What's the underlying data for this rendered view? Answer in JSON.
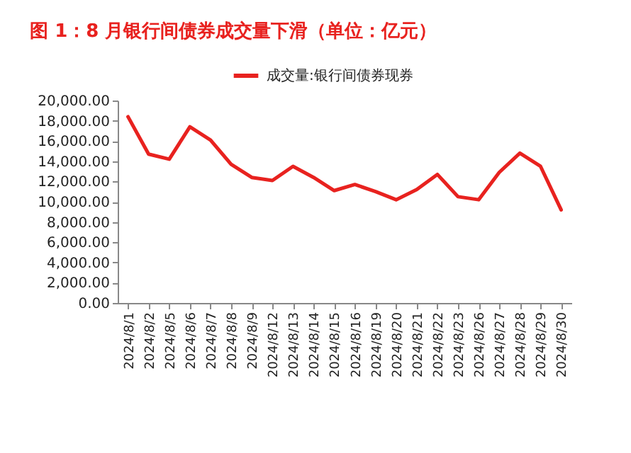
{
  "chart_data": {
    "type": "line",
    "title": "图 1：8 月银行间债券成交量下滑（单位：亿元）",
    "categories": [
      "2024/8/1",
      "2024/8/2",
      "2024/8/5",
      "2024/8/6",
      "2024/8/7",
      "2024/8/8",
      "2024/8/9",
      "2024/8/12",
      "2024/8/13",
      "2024/8/14",
      "2024/8/15",
      "2024/8/16",
      "2024/8/19",
      "2024/8/20",
      "2024/8/21",
      "2024/8/22",
      "2024/8/23",
      "2024/8/26",
      "2024/8/27",
      "2024/8/28",
      "2024/8/29",
      "2024/8/30"
    ],
    "series": [
      {
        "name": "成交量:银行间债券现券",
        "color": "#e8221f",
        "values": [
          18400,
          14700,
          14200,
          17400,
          16100,
          13700,
          12400,
          12100,
          13500,
          12400,
          11100,
          11700,
          11000,
          10200,
          11200,
          12700,
          10500,
          10200,
          12900,
          14800,
          13500,
          9200
        ]
      }
    ],
    "ylim": [
      0,
      20000
    ],
    "yticks": [
      {
        "value": 0,
        "label": "0.00"
      },
      {
        "value": 2000,
        "label": "2,000.00"
      },
      {
        "value": 4000,
        "label": "4,000.00"
      },
      {
        "value": 6000,
        "label": "6,000.00"
      },
      {
        "value": 8000,
        "label": "8,000.00"
      },
      {
        "value": 10000,
        "label": "10,000.00"
      },
      {
        "value": 12000,
        "label": "12,000.00"
      },
      {
        "value": 14000,
        "label": "14,000.00"
      },
      {
        "value": 16000,
        "label": "16,000.00"
      },
      {
        "value": 18000,
        "label": "18,000.00"
      },
      {
        "value": 20000,
        "label": "20,000.00"
      }
    ],
    "grid": false,
    "legend": "top",
    "marker": "none",
    "line_style": "solid"
  }
}
